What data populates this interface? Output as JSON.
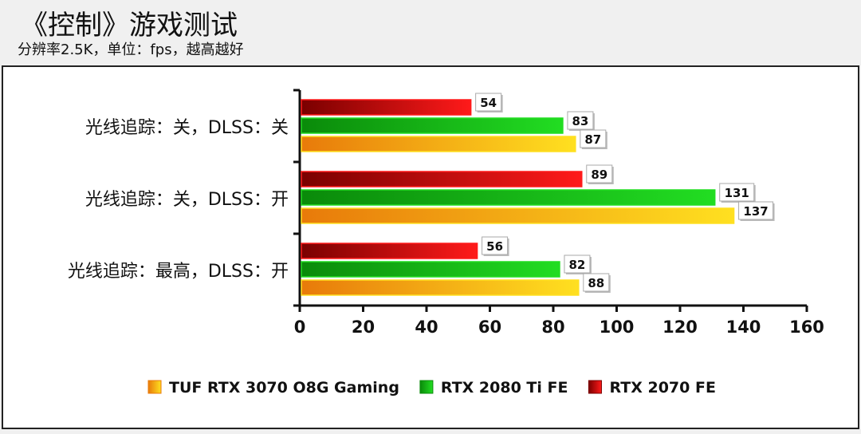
{
  "header": {
    "title": "《控制》游戏测试",
    "subtitle": "分辨率2.5K，单位：fps，越高越好"
  },
  "chart_data": {
    "type": "bar",
    "orientation": "horizontal",
    "title": "《控制》游戏测试",
    "subtitle": "分辨率2.5K，单位：fps，越高越好",
    "categories": [
      "光线追踪：关，DLSS：关",
      "光线追踪：关，DLSS：开",
      "光线追踪：最高，DLSS：开"
    ],
    "series": [
      {
        "name": "RTX 2070 FE",
        "values": [
          54,
          89,
          56
        ],
        "colors": [
          "#7a0000",
          "#ff1a1a"
        ]
      },
      {
        "name": "RTX 2080 Ti FE",
        "values": [
          83,
          131,
          82
        ],
        "colors": [
          "#0a8a0a",
          "#22dd22"
        ]
      },
      {
        "name": "TUF RTX 3070 O8G Gaming",
        "values": [
          87,
          137,
          88
        ],
        "colors": [
          "#e87a0a",
          "#ffe020"
        ]
      }
    ],
    "legend_order": [
      "TUF RTX 3070 O8G Gaming",
      "RTX 2080 Ti FE",
      "RTX 2070 FE"
    ],
    "xlim": [
      0,
      160
    ],
    "xticks": [
      0,
      20,
      40,
      60,
      80,
      100,
      120,
      140,
      160
    ],
    "legend_position": "bottom",
    "grid": false
  }
}
